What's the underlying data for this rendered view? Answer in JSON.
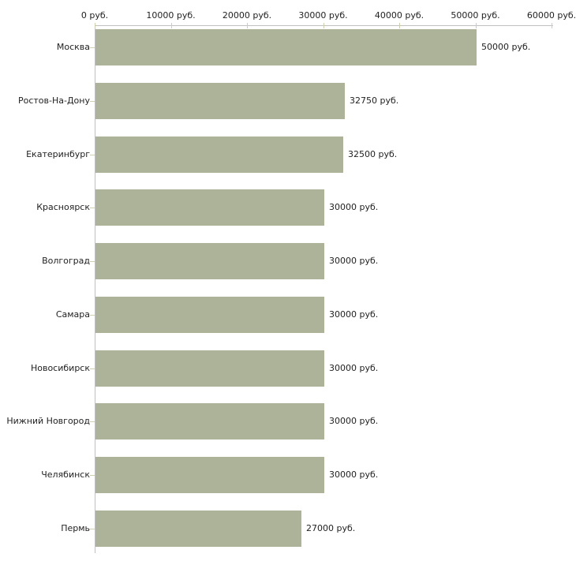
{
  "chart_data": {
    "type": "bar",
    "orientation": "horizontal",
    "title": "",
    "xlabel": "",
    "ylabel": "",
    "unit": "руб.",
    "categories": [
      "Москва",
      "Ростов-На-Дону",
      "Екатеринбург",
      "Красноярск",
      "Волгоград",
      "Самара",
      "Новосибирск",
      "Нижний Новгород",
      "Челябинск",
      "Пермь"
    ],
    "values": [
      50000,
      32750,
      32500,
      30000,
      30000,
      30000,
      30000,
      30000,
      30000,
      27000
    ],
    "value_labels": [
      "50000 руб.",
      "32750 руб.",
      "32500 руб.",
      "30000 руб.",
      "30000 руб.",
      "30000 руб.",
      "30000 руб.",
      "30000 руб.",
      "30000 руб.",
      "27000 руб."
    ],
    "x_tick_values": [
      0,
      10000,
      20000,
      30000,
      40000,
      50000,
      60000
    ],
    "x_tick_labels": [
      "0 руб.",
      "10000 руб.",
      "20000 руб.",
      "30000 руб.",
      "40000 руб.",
      "50000 руб.",
      "60000 руб."
    ],
    "xlim": [
      0,
      60000
    ],
    "legend": false,
    "grid": false,
    "axis_position": "top-left"
  },
  "style": {
    "bar_color": "#acb399",
    "axis_line_color": "#c0c0c0",
    "tick_color": "#cfcfae",
    "text_color": "#222222",
    "background_color": "#ffffff"
  }
}
